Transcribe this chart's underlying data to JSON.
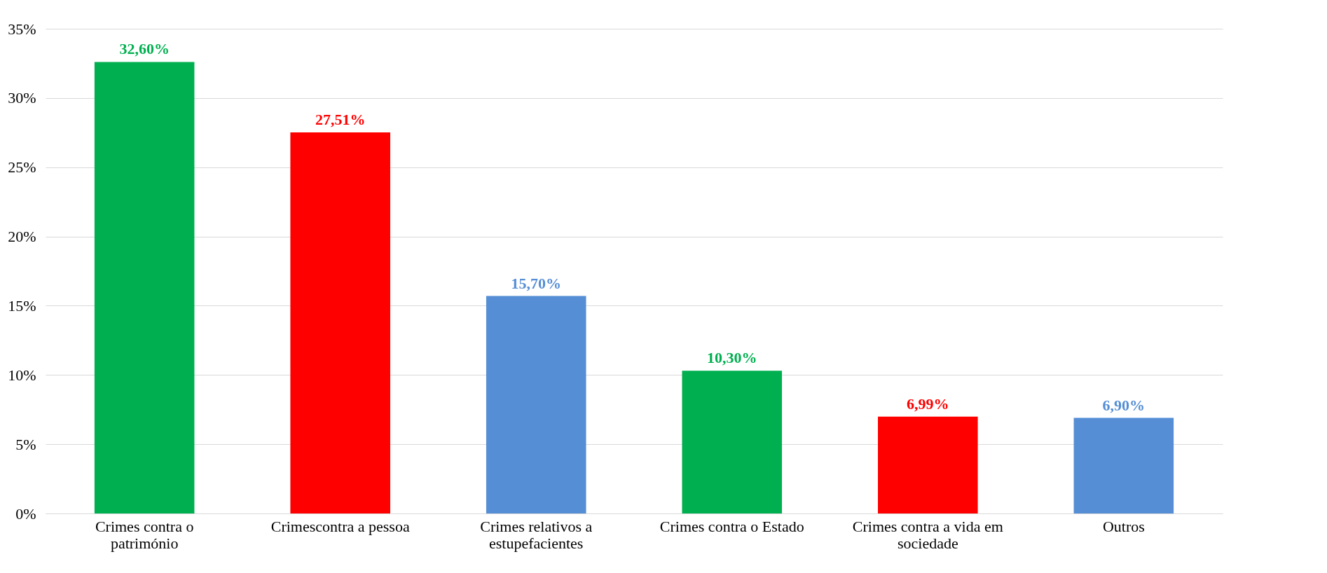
{
  "chart_data": {
    "type": "bar",
    "categories": [
      "Crimes contra o património",
      "Crimescontra a pessoa",
      "Crimes relativos a estupefacientes",
      "Crimes contra o Estado",
      "Crimes contra a vida em sociedade",
      "Outros"
    ],
    "values": [
      32.6,
      27.51,
      15.7,
      10.3,
      6.99,
      6.9
    ],
    "value_labels": [
      "32,60%",
      "27,51%",
      "15,70%",
      "10,30%",
      "6,99%",
      "6,90%"
    ],
    "colors": [
      "#00b050",
      "#ff0000",
      "#558ed5",
      "#00b050",
      "#ff0000",
      "#558ed5"
    ],
    "ylim": [
      0,
      35
    ],
    "yticks": [
      {
        "value": 0,
        "label": "0%"
      },
      {
        "value": 5,
        "label": "5%"
      },
      {
        "value": 10,
        "label": "10%"
      },
      {
        "value": 15,
        "label": "15%"
      },
      {
        "value": 20,
        "label": "20%"
      },
      {
        "value": 25,
        "label": "25%"
      },
      {
        "value": 30,
        "label": "30%"
      },
      {
        "value": 35,
        "label": "35%"
      }
    ],
    "grid": "y"
  }
}
